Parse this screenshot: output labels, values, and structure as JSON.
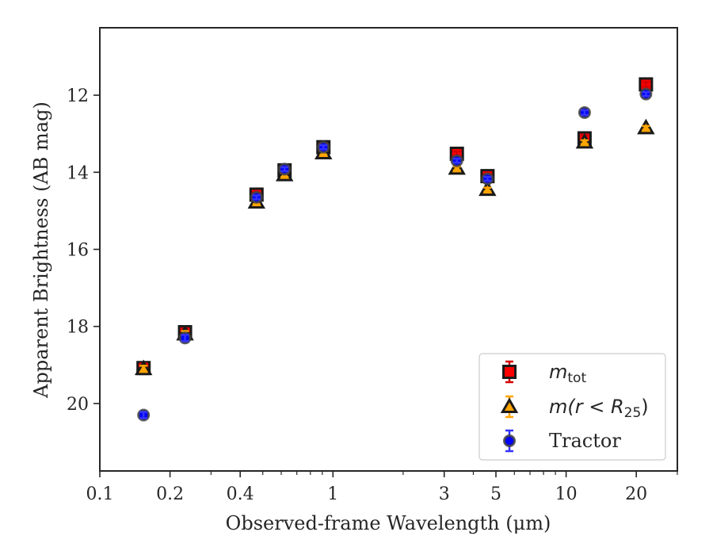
{
  "chart_data": {
    "type": "scatter",
    "title": "",
    "xlabel": "Observed-frame Wavelength (μm)",
    "ylabel": "Apparent Brightness (AB mag)",
    "xscale": "log",
    "xlim": [
      0.1,
      30
    ],
    "ylim": [
      21.75,
      10.25
    ],
    "y_inverted": true,
    "grid": false,
    "legend_position": "lower-right",
    "x_ticks": [
      {
        "value": 0.1,
        "label": "0.1"
      },
      {
        "value": 0.2,
        "label": "0.2"
      },
      {
        "value": 0.4,
        "label": "0.4"
      },
      {
        "value": 1,
        "label": "1"
      },
      {
        "value": 3,
        "label": "3"
      },
      {
        "value": 5,
        "label": "5"
      },
      {
        "value": 10,
        "label": "10"
      },
      {
        "value": 20,
        "label": "20"
      }
    ],
    "x_minor_ticks": [
      0.3,
      0.5,
      0.6,
      0.7,
      0.8,
      0.9,
      2,
      4,
      6,
      7,
      8,
      9,
      30
    ],
    "y_ticks": [
      {
        "value": 12,
        "label": "12"
      },
      {
        "value": 14,
        "label": "14"
      },
      {
        "value": 16,
        "label": "16"
      },
      {
        "value": 18,
        "label": "18"
      },
      {
        "value": 20,
        "label": "20"
      }
    ],
    "series": [
      {
        "legend_main": "m",
        "legend_sub": "tot",
        "marker": "square",
        "fill": "#ff0000",
        "edge": "#1a1a1a",
        "errcolor": "#d40000",
        "x": [
          0.154,
          0.232,
          0.47,
          0.62,
          0.91,
          3.4,
          4.6,
          12.0,
          22.0
        ],
        "y": [
          19.08,
          18.15,
          14.58,
          13.95,
          13.35,
          13.52,
          14.1,
          13.12,
          11.72
        ],
        "yerr": [
          0.12,
          0.1,
          0.06,
          0.05,
          0.05,
          0.06,
          0.06,
          0.08,
          0.06
        ]
      },
      {
        "legend_main": "m(r < R",
        "legend_sub": "25",
        "legend_tail": ")",
        "marker": "triangle",
        "fill": "#ffa500",
        "edge": "#1a1a1a",
        "errcolor": "#ffa500",
        "x": [
          0.154,
          0.232,
          0.47,
          0.62,
          0.91,
          3.4,
          4.6,
          12.0,
          22.0
        ],
        "y": [
          19.1,
          18.2,
          14.78,
          14.07,
          13.5,
          13.9,
          14.45,
          13.22,
          12.85
        ],
        "yerr": [
          0.08,
          0.08,
          0.05,
          0.05,
          0.05,
          0.05,
          0.05,
          0.05,
          0.05
        ]
      },
      {
        "name": "Tractor",
        "marker": "circle",
        "fill": "#0000ff",
        "edge": "#444444",
        "errcolor": "#3333ff",
        "x": [
          0.154,
          0.232,
          0.47,
          0.62,
          0.91,
          3.4,
          4.6,
          12.0,
          22.0
        ],
        "y": [
          20.3,
          18.3,
          14.65,
          13.92,
          13.35,
          13.7,
          14.17,
          12.45,
          11.97
        ],
        "yerr": [
          0.08,
          0.08,
          0.05,
          0.05,
          0.05,
          0.05,
          0.05,
          0.06,
          0.05
        ]
      }
    ]
  }
}
